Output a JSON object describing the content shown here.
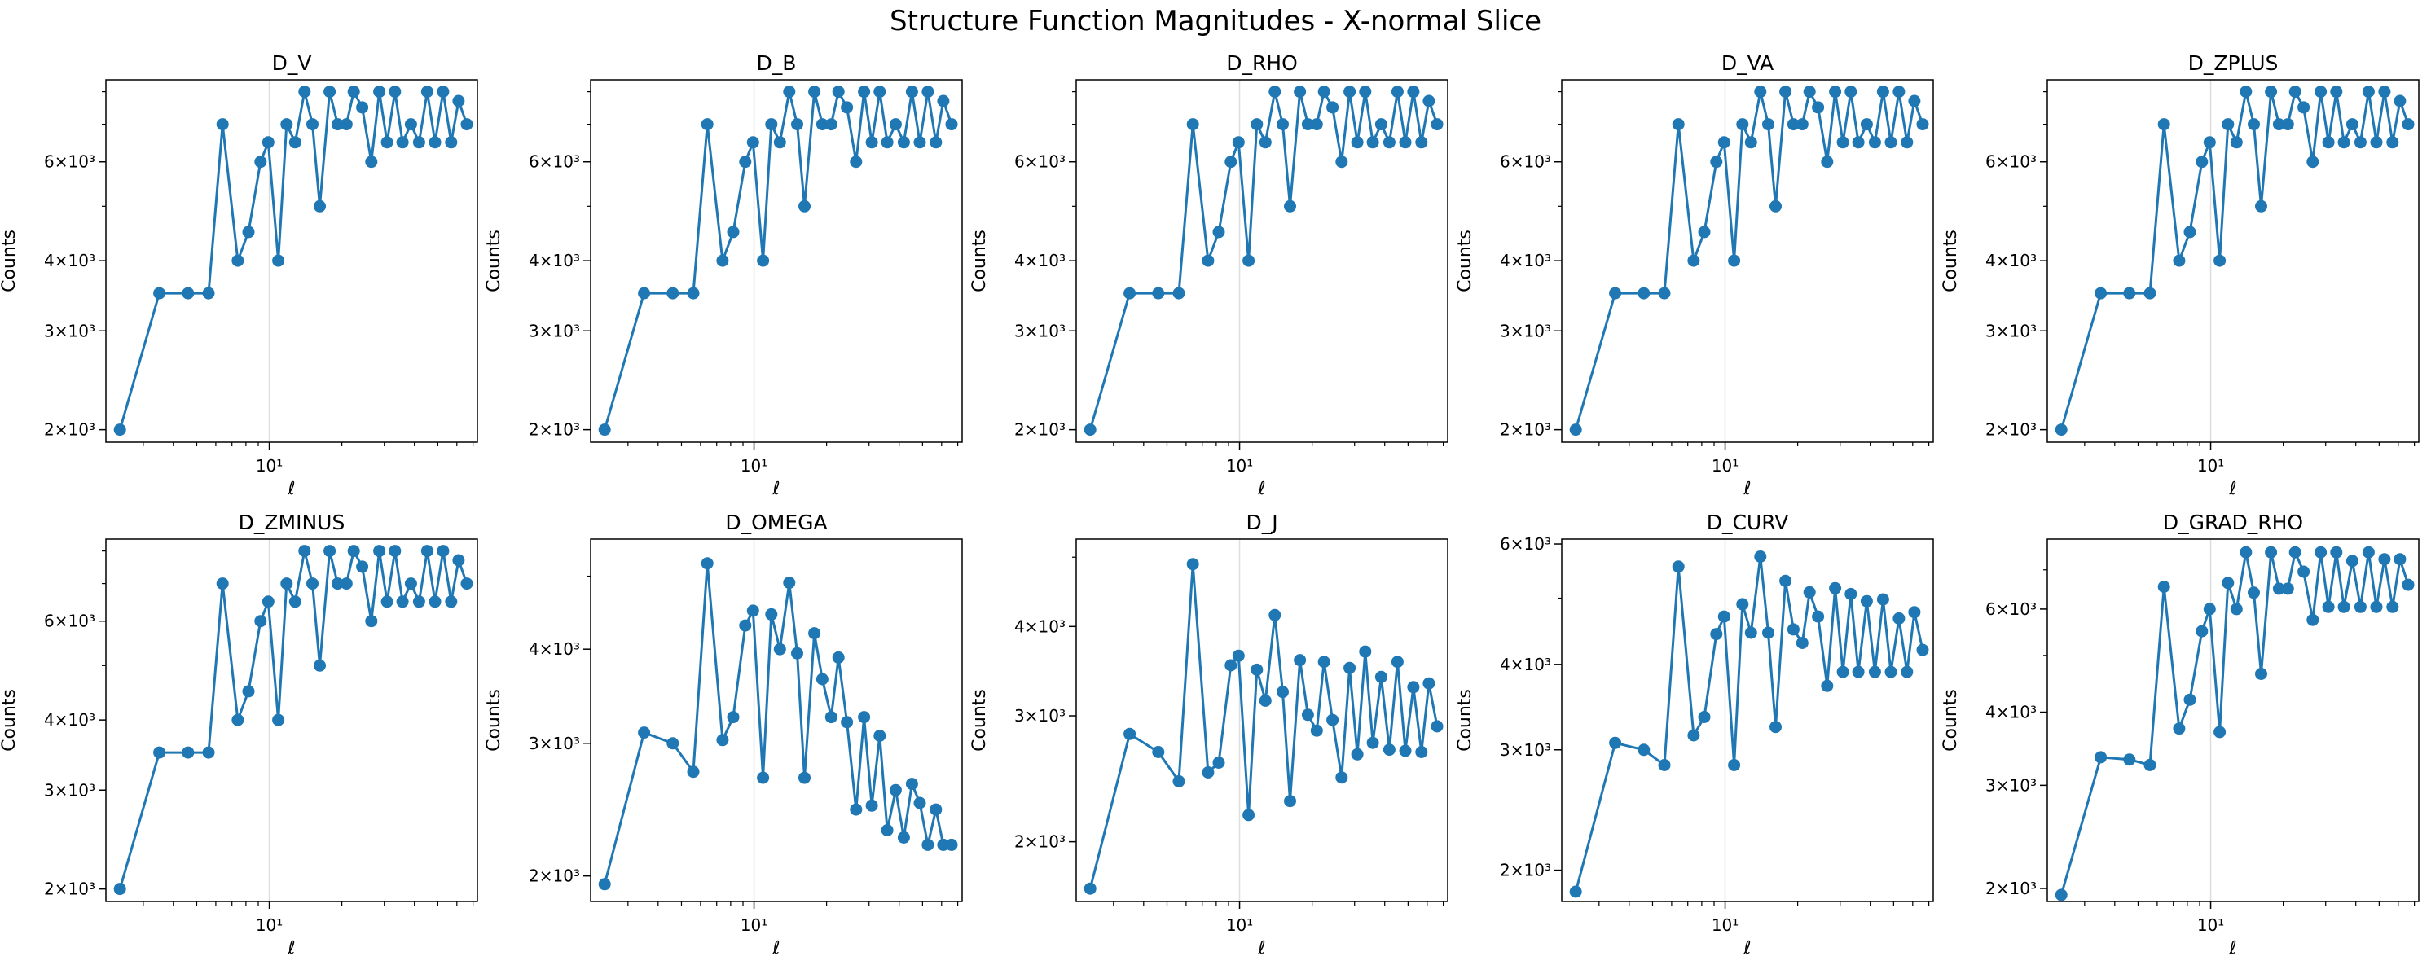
{
  "figure": {
    "suptitle": "Structure Function Magnitudes - X-normal Slice"
  },
  "style": {
    "line_color": "#1f77b4",
    "grid_color": "#dddddd"
  },
  "shared": {
    "type": "line",
    "xscale": "log",
    "yscale": "log",
    "xlabel": "ℓ",
    "ylabel": "Counts",
    "marker": "circle",
    "grid": "vertical line at x = 10",
    "xlim": [
      2.1,
      73
    ],
    "x": [
      2.4,
      3.5,
      4.6,
      5.6,
      6.4,
      7.4,
      8.2,
      9.2,
      9.9,
      10.9,
      11.8,
      12.8,
      14.0,
      15.1,
      16.2,
      17.8,
      19.2,
      20.9,
      22.4,
      24.3,
      26.5,
      28.6,
      30.8,
      33.2,
      35.7,
      38.7,
      41.8,
      45.2,
      48.7,
      52.6,
      56.8,
      61.0,
      66.0
    ]
  },
  "chart_data": [
    {
      "type": "line",
      "title": "D_V",
      "ylim": [
        1900,
        8400
      ],
      "yticks": [
        2000,
        3000,
        4000,
        6000
      ],
      "ytick_labels": [
        "2×10³",
        "3×10³",
        "4×10³",
        "6×10³"
      ],
      "xticks": [
        10
      ],
      "xtick_labels": [
        "10¹"
      ],
      "values": [
        2000,
        3500,
        3500,
        3500,
        7000,
        4000,
        4500,
        6000,
        6500,
        4000,
        7000,
        6500,
        8000,
        7000,
        5000,
        8000,
        7000,
        7000,
        8000,
        7500,
        6000,
        8000,
        6500,
        8000,
        6500,
        7000,
        6500,
        8000,
        6500,
        8000,
        6500,
        7700,
        7000
      ]
    },
    {
      "type": "line",
      "title": "D_B",
      "ylim": [
        1900,
        8400
      ],
      "yticks": [
        2000,
        3000,
        4000,
        6000
      ],
      "ytick_labels": [
        "2×10³",
        "3×10³",
        "4×10³",
        "6×10³"
      ],
      "xticks": [
        10
      ],
      "xtick_labels": [
        "10¹"
      ],
      "values": [
        2000,
        3500,
        3500,
        3500,
        7000,
        4000,
        4500,
        6000,
        6500,
        4000,
        7000,
        6500,
        8000,
        7000,
        5000,
        8000,
        7000,
        7000,
        8000,
        7500,
        6000,
        8000,
        6500,
        8000,
        6500,
        7000,
        6500,
        8000,
        6500,
        8000,
        6500,
        7700,
        7000
      ]
    },
    {
      "type": "line",
      "title": "D_RHO",
      "ylim": [
        1900,
        8400
      ],
      "yticks": [
        2000,
        3000,
        4000,
        6000
      ],
      "ytick_labels": [
        "2×10³",
        "3×10³",
        "4×10³",
        "6×10³"
      ],
      "xticks": [
        10
      ],
      "xtick_labels": [
        "10¹"
      ],
      "values": [
        2000,
        3500,
        3500,
        3500,
        7000,
        4000,
        4500,
        6000,
        6500,
        4000,
        7000,
        6500,
        8000,
        7000,
        5000,
        8000,
        7000,
        7000,
        8000,
        7500,
        6000,
        8000,
        6500,
        8000,
        6500,
        7000,
        6500,
        8000,
        6500,
        8000,
        6500,
        7700,
        7000
      ]
    },
    {
      "type": "line",
      "title": "D_VA",
      "ylim": [
        1900,
        8400
      ],
      "yticks": [
        2000,
        3000,
        4000,
        6000
      ],
      "ytick_labels": [
        "2×10³",
        "3×10³",
        "4×10³",
        "6×10³"
      ],
      "xticks": [
        10
      ],
      "xtick_labels": [
        "10¹"
      ],
      "values": [
        2000,
        3500,
        3500,
        3500,
        7000,
        4000,
        4500,
        6000,
        6500,
        4000,
        7000,
        6500,
        8000,
        7000,
        5000,
        8000,
        7000,
        7000,
        8000,
        7500,
        6000,
        8000,
        6500,
        8000,
        6500,
        7000,
        6500,
        8000,
        6500,
        8000,
        6500,
        7700,
        7000
      ]
    },
    {
      "type": "line",
      "title": "D_ZPLUS",
      "ylim": [
        1900,
        8400
      ],
      "yticks": [
        2000,
        3000,
        4000,
        6000
      ],
      "ytick_labels": [
        "2×10³",
        "3×10³",
        "4×10³",
        "6×10³"
      ],
      "xticks": [
        10
      ],
      "xtick_labels": [
        "10¹"
      ],
      "values": [
        2000,
        3500,
        3500,
        3500,
        7000,
        4000,
        4500,
        6000,
        6500,
        4000,
        7000,
        6500,
        8000,
        7000,
        5000,
        8000,
        7000,
        7000,
        8000,
        7500,
        6000,
        8000,
        6500,
        8000,
        6500,
        7000,
        6500,
        8000,
        6500,
        8000,
        6500,
        7700,
        7000
      ]
    },
    {
      "type": "line",
      "title": "D_ZMINUS",
      "ylim": [
        1900,
        8400
      ],
      "yticks": [
        2000,
        3000,
        4000,
        6000
      ],
      "ytick_labels": [
        "2×10³",
        "3×10³",
        "4×10³",
        "6×10³"
      ],
      "xticks": [
        10
      ],
      "xtick_labels": [
        "10¹"
      ],
      "values": [
        2000,
        3500,
        3500,
        3500,
        7000,
        4000,
        4500,
        6000,
        6500,
        4000,
        7000,
        6500,
        8000,
        7000,
        5000,
        8000,
        7000,
        7000,
        8000,
        7500,
        6000,
        8000,
        6500,
        8000,
        6500,
        7000,
        6500,
        8000,
        6500,
        8000,
        6500,
        7700,
        7000
      ]
    },
    {
      "type": "line",
      "title": "D_OMEGA",
      "ylim": [
        1850,
        5600
      ],
      "yticks": [
        2000,
        3000,
        4000
      ],
      "ytick_labels": [
        "2×10³",
        "3×10³",
        "4×10³"
      ],
      "xticks": [
        10
      ],
      "xtick_labels": [
        "10¹"
      ],
      "values": [
        1950,
        3100,
        3000,
        2750,
        5200,
        3030,
        3250,
        4300,
        4500,
        2700,
        4450,
        4000,
        4900,
        3950,
        2700,
        4200,
        3650,
        3250,
        3900,
        3200,
        2450,
        3250,
        2480,
        3070,
        2300,
        2600,
        2250,
        2650,
        2500,
        2200,
        2450,
        2200,
        2200
      ]
    },
    {
      "type": "line",
      "title": "D_J",
      "ylim": [
        1650,
        5300
      ],
      "yticks": [
        2000,
        3000,
        4000
      ],
      "ytick_labels": [
        "2×10³",
        "3×10³",
        "4×10³"
      ],
      "xticks": [
        10
      ],
      "xtick_labels": [
        "10¹"
      ],
      "values": [
        1720,
        2830,
        2670,
        2430,
        4890,
        2500,
        2580,
        3530,
        3640,
        2180,
        3480,
        3150,
        4150,
        3240,
        2280,
        3590,
        3010,
        2860,
        3570,
        2960,
        2460,
        3500,
        2650,
        3690,
        2750,
        3400,
        2690,
        3570,
        2680,
        3290,
        2670,
        3330,
        2900
      ]
    },
    {
      "type": "line",
      "title": "D_CURV",
      "ylim": [
        1800,
        6100
      ],
      "yticks": [
        2000,
        3000,
        4000,
        6000
      ],
      "ytick_labels": [
        "2×10³",
        "3×10³",
        "4×10³",
        "6×10³"
      ],
      "xticks": [
        10
      ],
      "xtick_labels": [
        "10¹"
      ],
      "values": [
        1860,
        3070,
        3000,
        2850,
        5560,
        3150,
        3350,
        4430,
        4700,
        2850,
        4900,
        4450,
        5750,
        4450,
        3240,
        5300,
        4500,
        4300,
        5100,
        4700,
        3720,
        5170,
        3900,
        5070,
        3900,
        4950,
        3900,
        4980,
        3900,
        4670,
        3900,
        4770,
        4200
      ]
    },
    {
      "type": "line",
      "title": "D_GRAD_RHO",
      "ylim": [
        1900,
        7900
      ],
      "yticks": [
        2000,
        3000,
        4000,
        6000
      ],
      "ytick_labels": [
        "2×10³",
        "3×10³",
        "4×10³",
        "6×10³"
      ],
      "xticks": [
        10
      ],
      "xtick_labels": [
        "10¹"
      ],
      "values": [
        1950,
        3350,
        3320,
        3250,
        6550,
        3750,
        4200,
        5500,
        6000,
        3700,
        6650,
        6000,
        7500,
        6400,
        4650,
        7500,
        6500,
        6500,
        7500,
        6950,
        5750,
        7500,
        6050,
        7500,
        6050,
        7250,
        6050,
        7500,
        6050,
        7300,
        6050,
        7300,
        6600
      ]
    }
  ]
}
